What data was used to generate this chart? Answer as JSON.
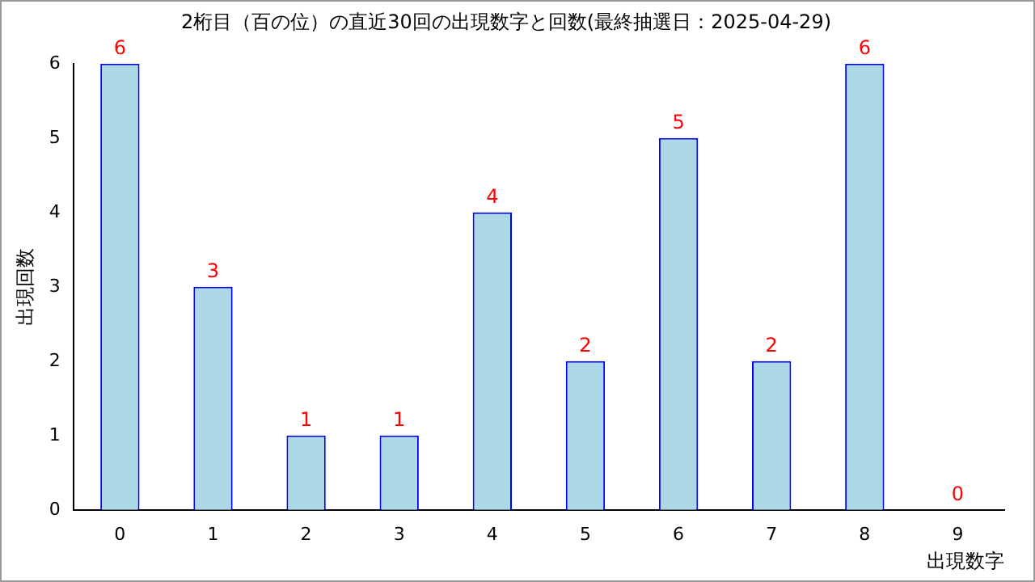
{
  "chart_data": {
    "type": "bar",
    "title": "2桁目（百の位）の直近30回の出現数字と回数(最終抽選日：2025-04-29)",
    "xlabel": "出現数字",
    "ylabel": "出現回数",
    "categories": [
      "0",
      "1",
      "2",
      "3",
      "4",
      "5",
      "6",
      "7",
      "8",
      "9"
    ],
    "values": [
      6,
      3,
      1,
      1,
      4,
      2,
      5,
      2,
      6,
      0
    ],
    "color": "#add8e6",
    "ylim": [
      0,
      6
    ],
    "yticks": [
      0,
      1,
      2,
      3,
      4,
      5,
      6
    ],
    "grid": false,
    "legend": false,
    "data_labels": true
  }
}
